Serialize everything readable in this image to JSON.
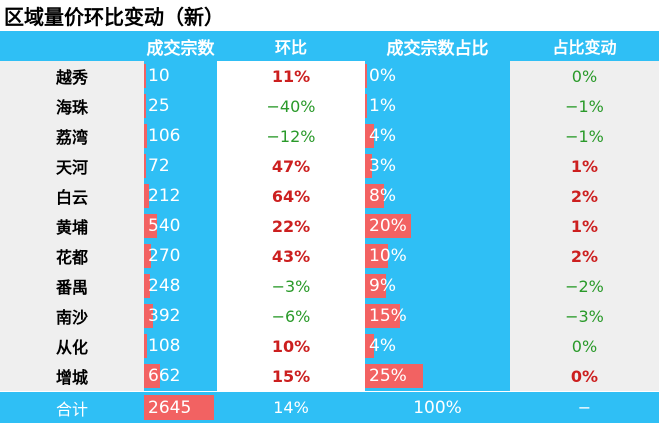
{
  "title": "区域量价环比变动（新）",
  "headers": [
    "",
    "成交宗数",
    "环比",
    "成交宗数占比",
    "占比变动"
  ],
  "rows": [
    {
      "district": "越秀",
      "deals": "10",
      "deals_value": 10,
      "mom": "11%",
      "mom_dir": "up",
      "share": "0%",
      "share_value": 0,
      "share_change": "0%",
      "change_dir": "down"
    },
    {
      "district": "海珠",
      "deals": "25",
      "deals_value": 25,
      "mom": "−40%",
      "mom_dir": "down",
      "share": "1%",
      "share_value": 1,
      "share_change": "−1%",
      "change_dir": "down"
    },
    {
      "district": "荔湾",
      "deals": "106",
      "deals_value": 106,
      "mom": "−12%",
      "mom_dir": "down",
      "share": "4%",
      "share_value": 4,
      "share_change": "−1%",
      "change_dir": "down"
    },
    {
      "district": "天河",
      "deals": "72",
      "deals_value": 72,
      "mom": "47%",
      "mom_dir": "up",
      "share": "3%",
      "share_value": 3,
      "share_change": "1%",
      "change_dir": "up"
    },
    {
      "district": "白云",
      "deals": "212",
      "deals_value": 212,
      "mom": "64%",
      "mom_dir": "up",
      "share": "8%",
      "share_value": 8,
      "share_change": "2%",
      "change_dir": "up"
    },
    {
      "district": "黄埔",
      "deals": "540",
      "deals_value": 540,
      "mom": "22%",
      "mom_dir": "up",
      "share": "20%",
      "share_value": 20,
      "share_change": "1%",
      "change_dir": "up"
    },
    {
      "district": "花都",
      "deals": "270",
      "deals_value": 270,
      "mom": "43%",
      "mom_dir": "up",
      "share": "10%",
      "share_value": 10,
      "share_change": "2%",
      "change_dir": "up"
    },
    {
      "district": "番禺",
      "deals": "248",
      "deals_value": 248,
      "mom": "−3%",
      "mom_dir": "down",
      "share": "9%",
      "share_value": 9,
      "share_change": "−2%",
      "change_dir": "down"
    },
    {
      "district": "南沙",
      "deals": "392",
      "deals_value": 392,
      "mom": "−6%",
      "mom_dir": "down",
      "share": "15%",
      "share_value": 15,
      "share_change": "−3%",
      "change_dir": "down"
    },
    {
      "district": "从化",
      "deals": "108",
      "deals_value": 108,
      "mom": "10%",
      "mom_dir": "up",
      "share": "4%",
      "share_value": 4,
      "share_change": "0%",
      "change_dir": "down"
    },
    {
      "district": "增城",
      "deals": "662",
      "deals_value": 662,
      "mom": "15%",
      "mom_dir": "up",
      "share": "25%",
      "share_value": 25,
      "share_change": "0%",
      "change_dir": "up"
    }
  ],
  "total": {
    "label": "合计",
    "deals": "2645",
    "deals_value": 2645,
    "mom": "14%",
    "share": "100%",
    "share_change": "−"
  },
  "colors": {
    "header_bg": "#2fbff5",
    "bar": "#f26262",
    "up": "#cc1f1f",
    "down": "#2a9a2a",
    "row_bg": "#efefef"
  }
}
